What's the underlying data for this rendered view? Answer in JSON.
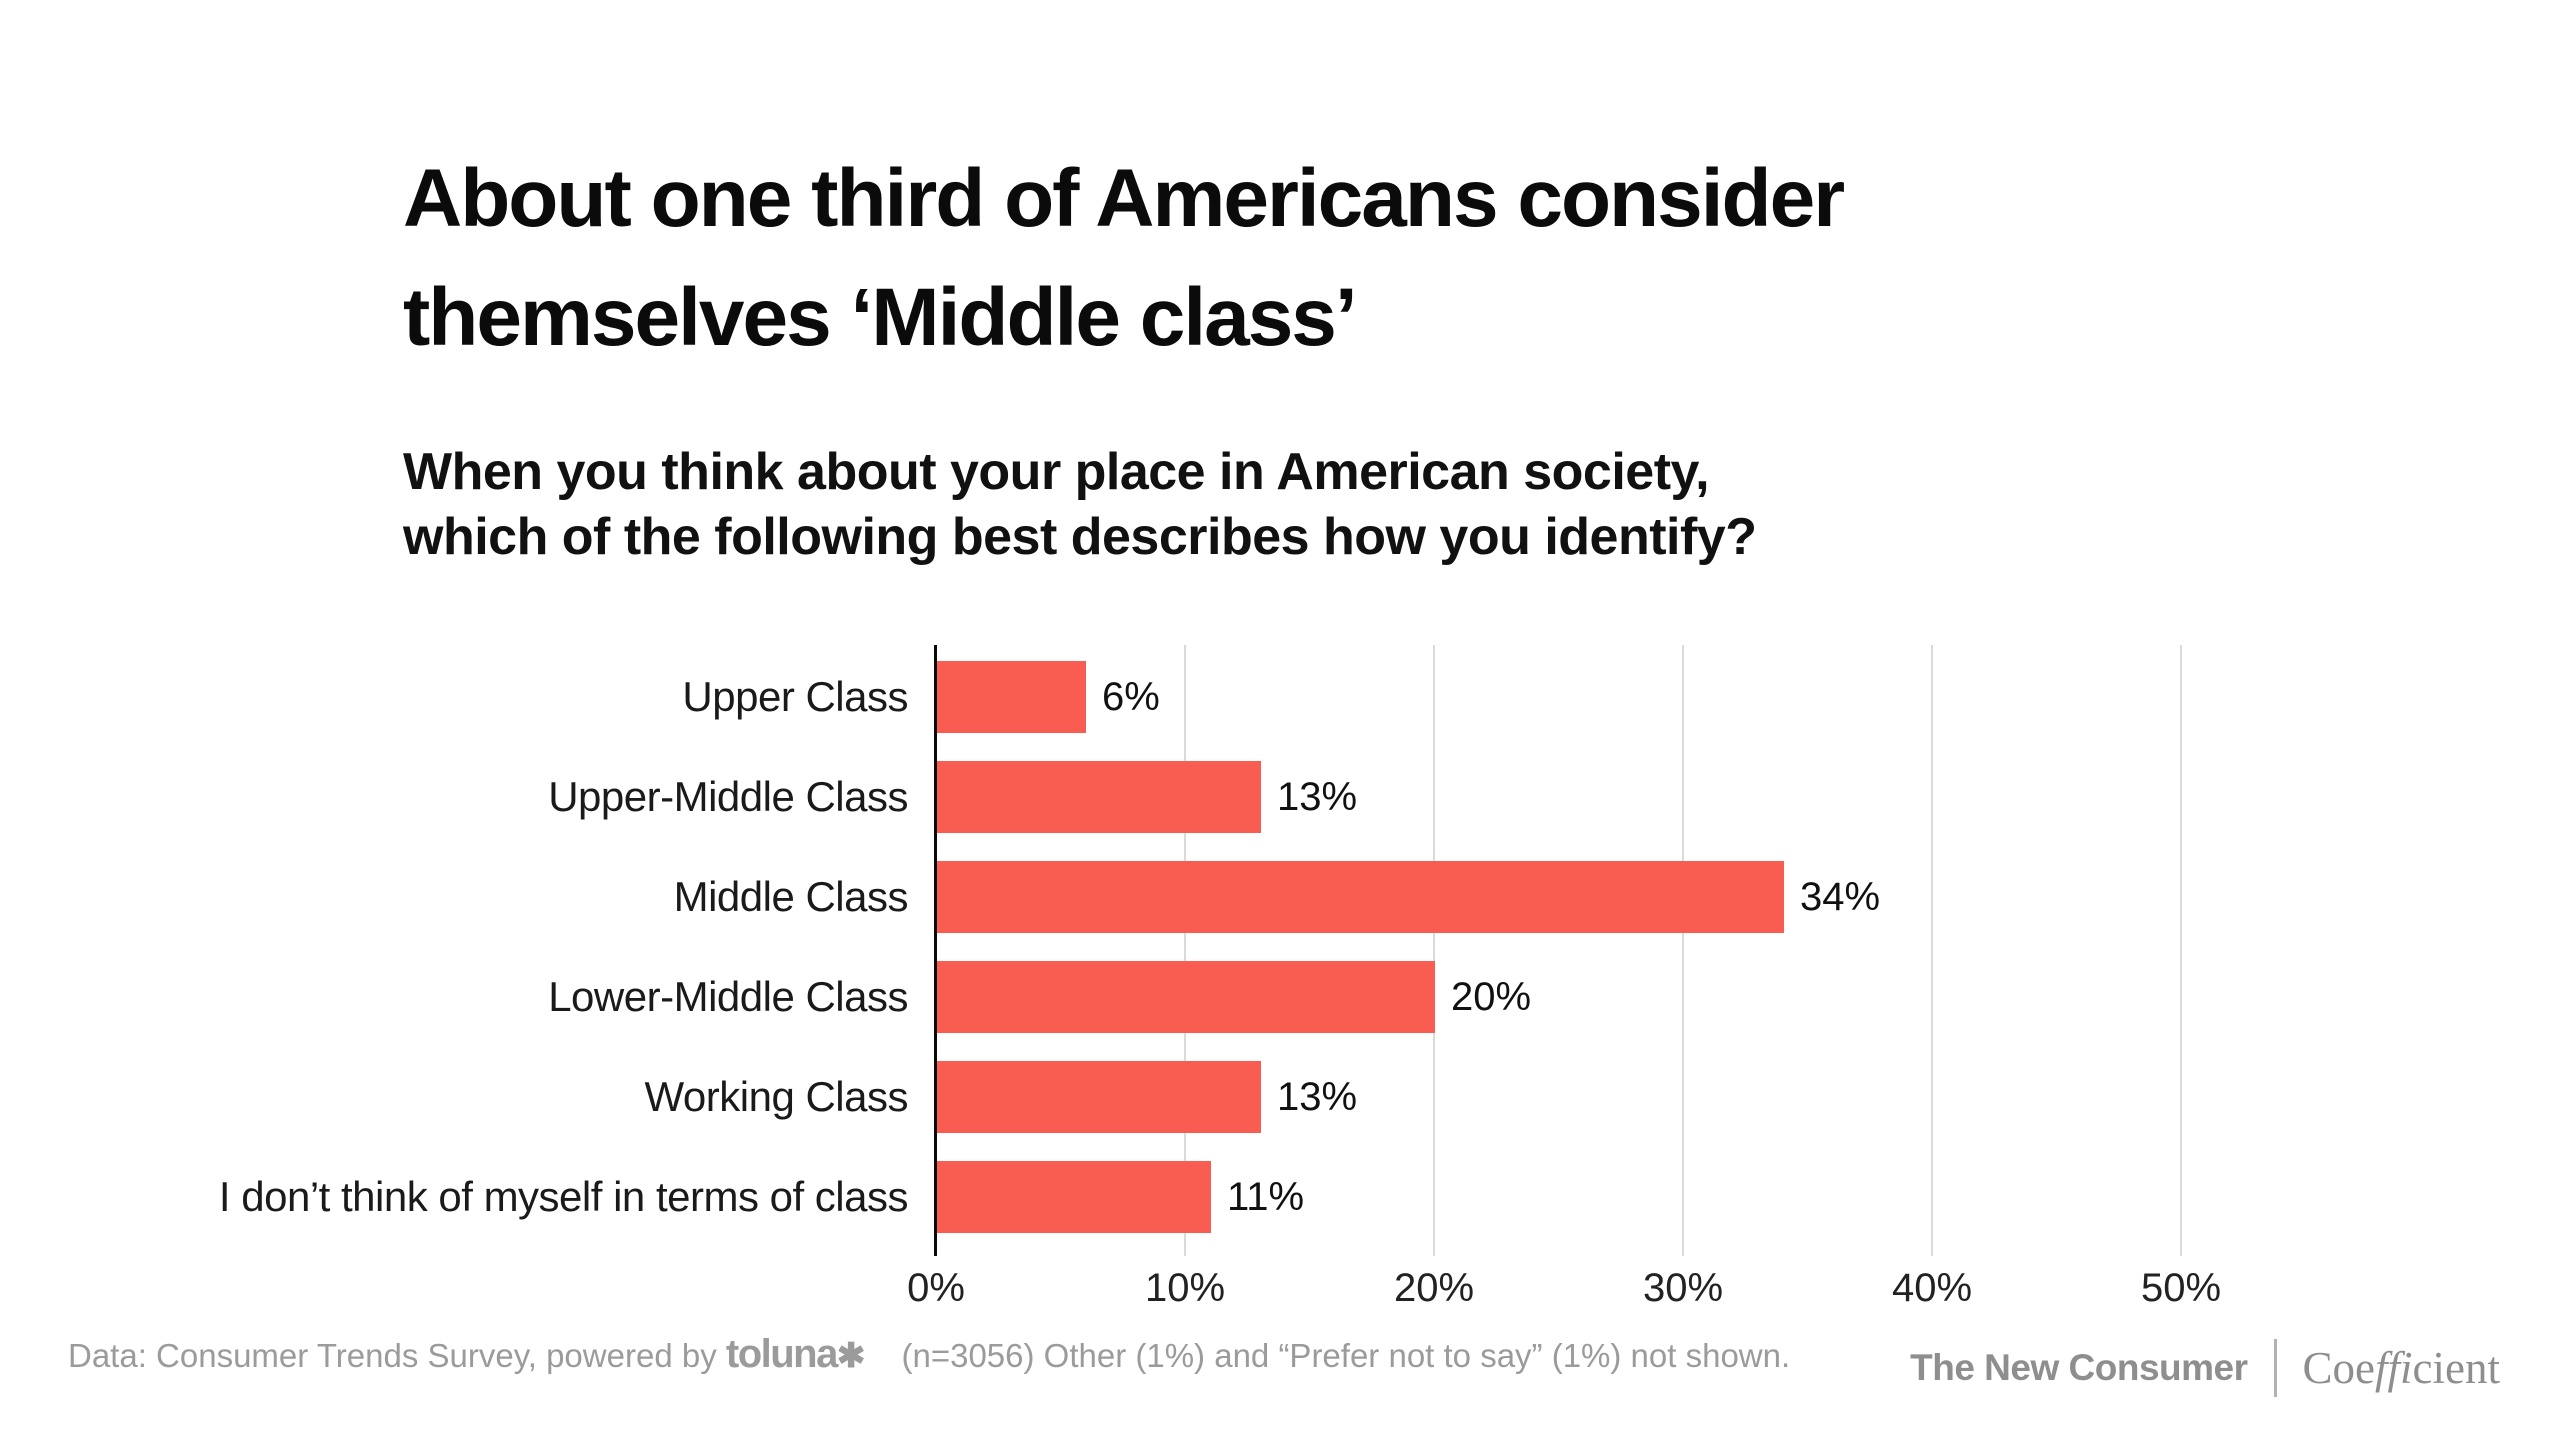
{
  "title": {
    "lines": [
      "About one third of Americans consider",
      "themselves ‘Middle class’"
    ]
  },
  "subtitle": {
    "lines": [
      "When you think about your place in American society,",
      "which of the following best describes how you identify?"
    ]
  },
  "chart_data": {
    "type": "bar",
    "orientation": "horizontal",
    "title": "About one third of Americans consider themselves ‘Middle class’",
    "question": "When you think about your place in American society, which of the following best describes how you identify?",
    "categories": [
      "Upper Class",
      "Upper-Middle Class",
      "Middle Class",
      "Lower-Middle Class",
      "Working Class",
      "I don’t think of myself in terms of class"
    ],
    "values": [
      6,
      13,
      34,
      20,
      13,
      11
    ],
    "value_labels": [
      "6%",
      "13%",
      "34%",
      "20%",
      "13%",
      "11%"
    ],
    "xlim": [
      0,
      50
    ],
    "x_tick_values": [
      0,
      10,
      20,
      30,
      40,
      50
    ],
    "x_tick_labels": [
      "0%",
      "10%",
      "20%",
      "30%",
      "40%",
      "50%"
    ],
    "grid": true,
    "legend": false,
    "bar_color": "#F95D51",
    "gridline_color": "#dadada",
    "axis_color": "#0a0a0a"
  },
  "footer": {
    "source_prefix": "Data: Consumer Trends Survey, powered by",
    "source_logo": "toluna",
    "source_logo_mark": "✱",
    "source_suffix": "(n=3056) Other (1%) and “Prefer not to say” (1%) not shown.",
    "brand_left": "The New Consumer",
    "brand_right": {
      "pre": "Coe",
      "lig": "ffi",
      "post": "cient"
    }
  },
  "colors": {
    "bar": "#F95D51",
    "gridline": "#dadada",
    "axis": "#0a0a0a",
    "footer_text": "#9b9b9b",
    "brand_text": "#8e8e8e"
  }
}
